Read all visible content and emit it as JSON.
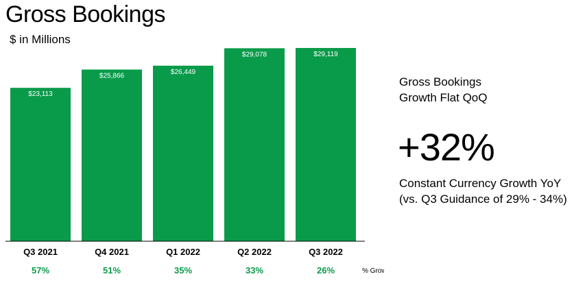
{
  "title": "Gross Bookings",
  "subtitle": "$ in Millions",
  "colors": {
    "bar": "#0a9b4a",
    "growth": "#0a9b4a",
    "axis": "#000000"
  },
  "chart_data": {
    "type": "bar",
    "categories": [
      "Q3 2021",
      "Q4 2021",
      "Q1 2022",
      "Q2 2022",
      "Q3 2022"
    ],
    "values": [
      23113,
      25866,
      26449,
      29078,
      29119
    ],
    "value_labels": [
      "$23,113",
      "$25,866",
      "$26,449",
      "$29,078",
      "$29,119"
    ],
    "growth_labels": [
      "57%",
      "51%",
      "35%",
      "33%",
      "26%"
    ],
    "growth_row_label": "% Growth YoY",
    "ylim": [
      0,
      29119
    ],
    "grid": false,
    "legend": "none"
  },
  "highlight": {
    "heading_lines": [
      "Gross Bookings",
      "Growth Flat QoQ"
    ],
    "stat": "+32%",
    "note_lines": [
      "Constant Currency Growth YoY",
      "(vs. Q3 Guidance of 29% - 34%)"
    ]
  }
}
